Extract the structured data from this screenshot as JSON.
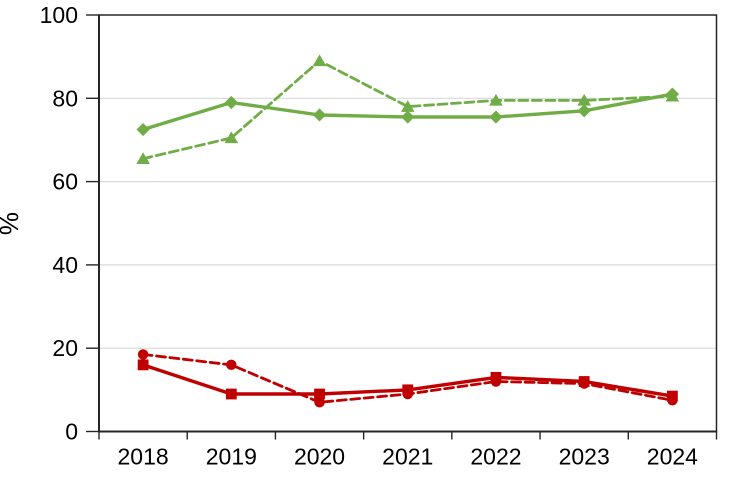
{
  "chart_data": {
    "type": "line",
    "title": "",
    "xlabel": "",
    "ylabel": "%",
    "categories": [
      "2018",
      "2019",
      "2020",
      "2021",
      "2022",
      "2023",
      "2024"
    ],
    "series": [
      {
        "name": "green-solid-diamond",
        "color": "#70AD47",
        "line_style": "solid",
        "marker": "diamond",
        "values": [
          72.5,
          79,
          76,
          75.5,
          75.5,
          77,
          81
        ]
      },
      {
        "name": "green-dashed-triangle",
        "color": "#70AD47",
        "line_style": "dashed",
        "marker": "triangle",
        "values": [
          65.5,
          70.5,
          89,
          78,
          79.5,
          79.5,
          80.5
        ]
      },
      {
        "name": "red-dashed-circle",
        "color": "#C00000",
        "line_style": "dashed",
        "marker": "circle",
        "values": [
          18.5,
          16,
          7,
          9,
          12,
          11.5,
          7.5
        ]
      },
      {
        "name": "red-solid-square",
        "color": "#C00000",
        "line_style": "solid",
        "marker": "square",
        "values": [
          16,
          9,
          9,
          10,
          13,
          12,
          8.5
        ]
      }
    ],
    "ylim": [
      0,
      100
    ],
    "yticks": [
      0,
      20,
      40,
      60,
      80,
      100
    ],
    "grid": true,
    "legend": "none",
    "colors": {
      "axis": "#262626",
      "grid": "#D9D9D9",
      "text": "#000000",
      "background": "#FFFFFF"
    }
  }
}
